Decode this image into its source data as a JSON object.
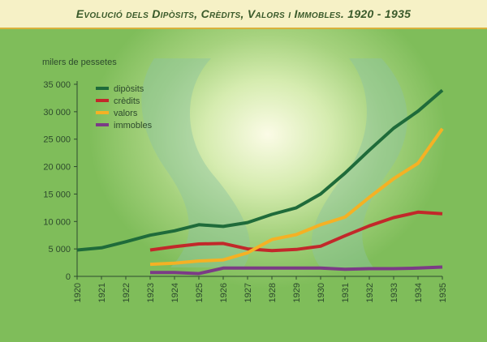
{
  "header": {
    "title": "Evolució dels Dipòsits, Crèdits, Valors i Immobles. 1920 - 1935"
  },
  "chart_data": {
    "type": "line",
    "title": "Evolució dels Dipòsits, Crèdits, Valors i Immobles. 1920 - 1935",
    "ylabel": "milers de pessetes",
    "xlabel": "",
    "ylim": [
      0,
      35000
    ],
    "yticks": [
      0,
      5000,
      10000,
      15000,
      20000,
      25000,
      30000,
      35000
    ],
    "ytick_labels": [
      "0",
      "5 000",
      "10 000",
      "15 000",
      "20 000",
      "25 000",
      "30 000",
      "35 000"
    ],
    "x": [
      "1920",
      "1921",
      "1922",
      "1923",
      "1924",
      "1925",
      "1926",
      "1927",
      "1928",
      "1929",
      "1930",
      "1931",
      "1932",
      "1933",
      "1934",
      "1935"
    ],
    "legend_position": "top-left",
    "grid": false,
    "series": [
      {
        "name": "dipòsits",
        "color": "#1f6b3a",
        "values": [
          4800,
          5200,
          6300,
          7500,
          8300,
          9400,
          9100,
          9800,
          11300,
          12500,
          15000,
          18800,
          23000,
          27000,
          30100,
          33900
        ]
      },
      {
        "name": "crèdits",
        "color": "#c2282a",
        "values": [
          null,
          null,
          null,
          4800,
          5400,
          5900,
          6000,
          5000,
          4700,
          4900,
          5500,
          7400,
          9200,
          10700,
          11700,
          11400
        ]
      },
      {
        "name": "valors",
        "color": "#f5b124",
        "values": [
          null,
          null,
          null,
          2200,
          2400,
          2800,
          3000,
          4300,
          6700,
          7600,
          9400,
          10800,
          14400,
          17800,
          20600,
          26900
        ]
      },
      {
        "name": "immobles",
        "color": "#7b3b86",
        "values": [
          null,
          null,
          null,
          700,
          700,
          500,
          1500,
          1500,
          1500,
          1500,
          1500,
          1300,
          1400,
          1400,
          1500,
          1700
        ]
      }
    ]
  }
}
